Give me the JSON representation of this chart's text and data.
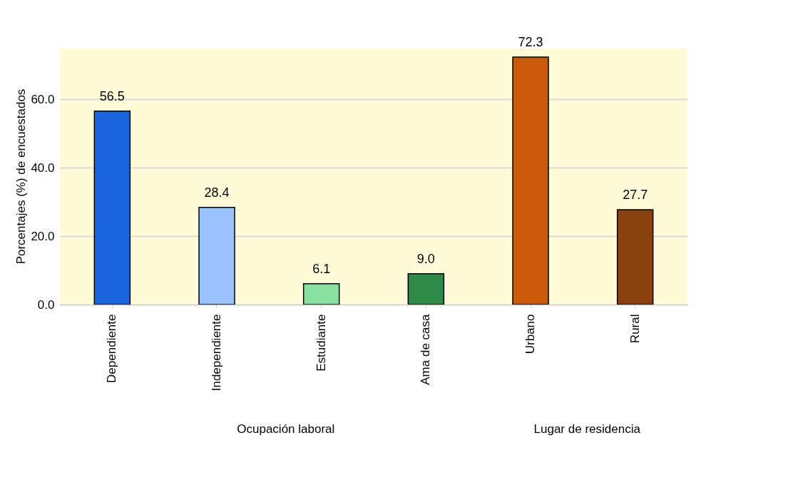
{
  "chart_data": {
    "type": "bar",
    "ylabel": "Porcentajes (%) de encuestados",
    "categories": [
      "Dependiente",
      "Independiente",
      "Estudiante",
      "Ama de casa",
      "Urbano",
      "Rural"
    ],
    "values": [
      56.5,
      28.4,
      6.1,
      9.0,
      72.3,
      27.7
    ],
    "value_labels": [
      "56.5",
      "28.4",
      "6.1",
      "9.0",
      "72.3",
      "27.7"
    ],
    "colors": [
      "#1a66e0",
      "#99c2ff",
      "#88e0a0",
      "#2e8b4a",
      "#cc5a0a",
      "#8b4010"
    ],
    "ylim": [
      0,
      75
    ],
    "yticks": [
      {
        "value": 0,
        "label": "0.0"
      },
      {
        "value": 20,
        "label": "20.0"
      },
      {
        "value": 40,
        "label": "40.0"
      },
      {
        "value": 60,
        "label": "60.0"
      }
    ],
    "grid": "y",
    "annotations": [
      "Ocupación laboral",
      "Lugar de residencia"
    ]
  }
}
